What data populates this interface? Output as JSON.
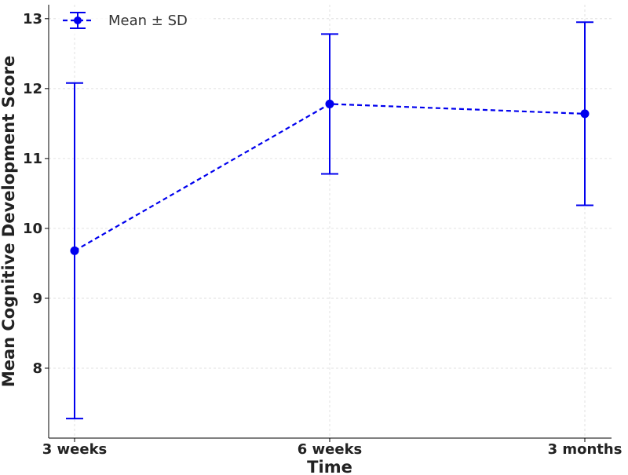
{
  "chart_data": {
    "type": "line",
    "title": "",
    "xlabel": "Time",
    "ylabel": "Mean Cognitive Development Score",
    "categories": [
      "3 weeks",
      "6 weeks",
      "3 months"
    ],
    "series": [
      {
        "name": "Mean ± SD",
        "values": [
          9.68,
          11.78,
          11.64
        ],
        "error": [
          2.4,
          1.0,
          1.31
        ],
        "color": "#0000ee",
        "line_style": "dashed",
        "marker": "circle"
      }
    ],
    "yticks": [
      "8",
      "9",
      "10",
      "11",
      "12",
      "13"
    ],
    "ylim": [
      7.0,
      13.2
    ],
    "grid": true,
    "legend_position": "top-left"
  }
}
